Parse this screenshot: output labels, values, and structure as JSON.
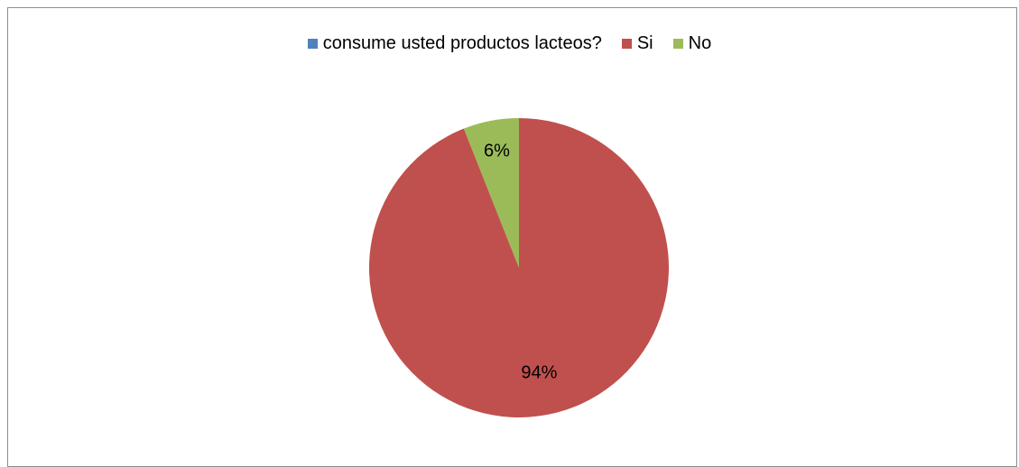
{
  "chart_data": {
    "type": "pie",
    "title": "",
    "series_name": "consume usted productos lacteos?",
    "categories": [
      "Si",
      "No"
    ],
    "values": [
      94,
      6
    ],
    "value_labels": [
      "94%",
      "6%"
    ],
    "colors": [
      "#c0504d",
      "#9bbb59"
    ],
    "legend": {
      "placement": "top",
      "entries": [
        {
          "label": "consume usted productos lacteos?",
          "color": "#4f81bd"
        },
        {
          "label": "Si",
          "color": "#c0504d"
        },
        {
          "label": "No",
          "color": "#9bbb59"
        }
      ]
    }
  }
}
